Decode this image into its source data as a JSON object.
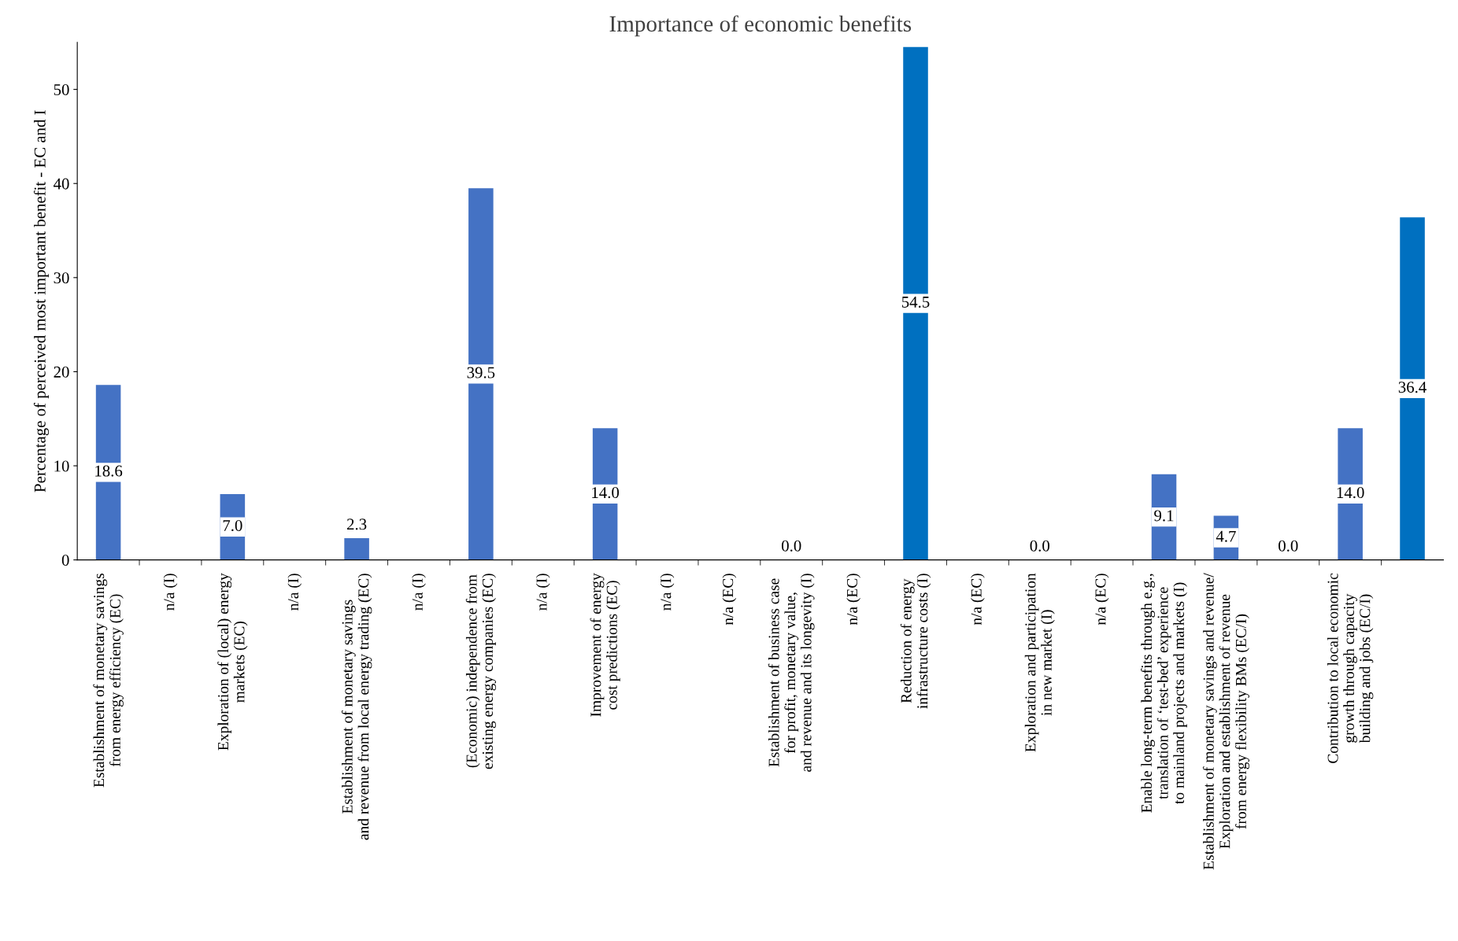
{
  "chart_data": {
    "type": "bar",
    "title": "Importance of economic benefits",
    "ylabel": "Percentage of perceived most important benefit - EC and I",
    "categories": [
      "Establishment of monetary savings\nfrom energy efficiency (EC)",
      "n/a (I)",
      "Exploration of (local) energy\nmarkets (EC)",
      "n/a (I)",
      "Establishment of monetary savings\nand revenue from local energy trading (EC)",
      "n/a (I)",
      "(Economic) independence from\nexisting energy companies (EC)",
      "n/a (I)",
      "Improvement of energy\ncost predictions (EC)",
      "n/a (I)",
      "n/a (EC)",
      "Establishment of business case\nfor profit, monetary value,\nand revenue and its longevity (I)",
      "n/a (EC)",
      "Reduction of energy\ninfrastructure costs (I)",
      "n/a (EC)",
      "Exploration and participation\nin new market (I)",
      "n/a (EC)",
      "Enable long-term benefits through e.g.,\ntranslation of ‘test-bed’ experience\nto mainland projects and markets (I)",
      "Establishment of monetary savings and revenue/\nExploration and establishment of revenue\nfrom energy flexibility BMs (EC/I)",
      null,
      "Contribution to local economic\ngrowth through capacity\nbuilding and jobs (EC/I)",
      null
    ],
    "values": [
      18.6,
      null,
      7.0,
      null,
      2.3,
      null,
      39.5,
      null,
      14.0,
      null,
      null,
      0.0,
      null,
      54.5,
      null,
      0.0,
      null,
      9.1,
      4.7,
      0.0,
      14.0,
      36.4
    ],
    "colors": [
      "#4472c4",
      "#4472c4",
      "#4472c4",
      "#4472c4",
      "#4472c4",
      "#4472c4",
      "#4472c4",
      "#4472c4",
      "#4472c4",
      "#4472c4",
      "#4472c4",
      "#4472c4",
      "#4472c4",
      "#0070c0",
      "#4472c4",
      "#4472c4",
      "#4472c4",
      "#4472c4",
      "#4472c4",
      "#4472c4",
      "#4472c4",
      "#0070c0"
    ],
    "value_labels": [
      "18.6",
      null,
      "7.0",
      null,
      "2.3",
      null,
      "39.5",
      null,
      "14.0",
      null,
      null,
      "0.0",
      null,
      "54.5",
      null,
      "0.0",
      null,
      "9.1",
      "4.7",
      "0.0",
      "14.0",
      "36.4"
    ],
    "ylim": [
      0,
      55
    ],
    "yticks": [
      0,
      10,
      20,
      30,
      40,
      50
    ],
    "grid": false,
    "legend": false
  }
}
